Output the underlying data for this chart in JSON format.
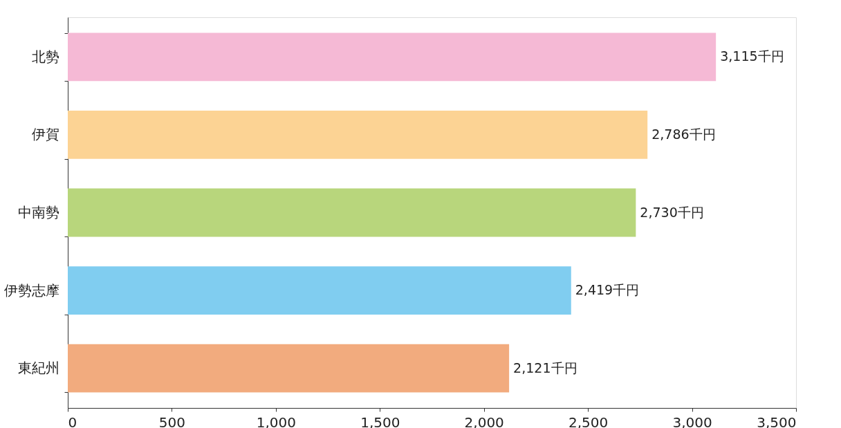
{
  "chart_data": {
    "type": "bar",
    "orientation": "horizontal",
    "categories": [
      "北勢",
      "伊賀",
      "中南勢",
      "伊勢志摩",
      "東紀州"
    ],
    "values": [
      3115,
      2786,
      2730,
      2419,
      2121
    ],
    "colors": [
      "#f5b9d5",
      "#fcd394",
      "#b8d67c",
      "#80cdf0",
      "#f2ab7e"
    ],
    "value_labels": [
      "3,115千円",
      "2,786千円",
      "2,730千円",
      "2,419千円",
      "2,121千円"
    ],
    "xlim": [
      0,
      3500
    ],
    "xticks": [
      0,
      500,
      {
        "value": 1000,
        "label": "1,000"
      },
      {
        "value": 1500,
        "label": "1,500"
      },
      {
        "value": 2000,
        "label": "2,000"
      },
      {
        "value": 2500,
        "label": "2,500"
      },
      {
        "value": 3000,
        "label": "3,000"
      },
      {
        "value": 3500,
        "label": "3,500"
      }
    ],
    "grid": false,
    "legend": false
  }
}
